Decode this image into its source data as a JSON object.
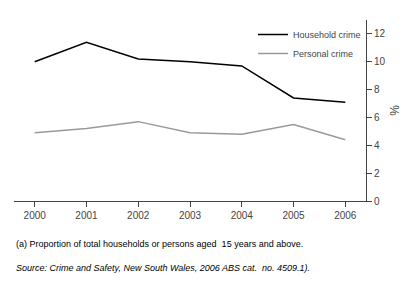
{
  "chart_data": {
    "type": "line",
    "x": [
      2000,
      2001,
      2002,
      2003,
      2004,
      2005,
      2006
    ],
    "series": [
      {
        "name": "Household crime",
        "color": "#000000",
        "values": [
          10.0,
          11.4,
          10.2,
          10.0,
          9.7,
          7.4,
          7.1
        ]
      },
      {
        "name": "Personal crime",
        "color": "#999999",
        "values": [
          4.9,
          5.2,
          5.7,
          4.9,
          4.8,
          5.5,
          4.4
        ]
      }
    ],
    "xlim": [
      1999.6,
      2006.4
    ],
    "xticks": [
      2000,
      2001,
      2002,
      2003,
      2004,
      2005,
      2006
    ],
    "ylim": [
      0,
      13
    ],
    "yticks": [
      0,
      2,
      4,
      6,
      8,
      10,
      12
    ],
    "y_label": "%",
    "legend": "upper right",
    "grid": false,
    "annotations": [
      "(a) Proportion of total households or persons aged  15 years and above.",
      "Source: Crime and Safety, New South Wales, 2006 ABS cat.  no. 4509.1)."
    ]
  }
}
